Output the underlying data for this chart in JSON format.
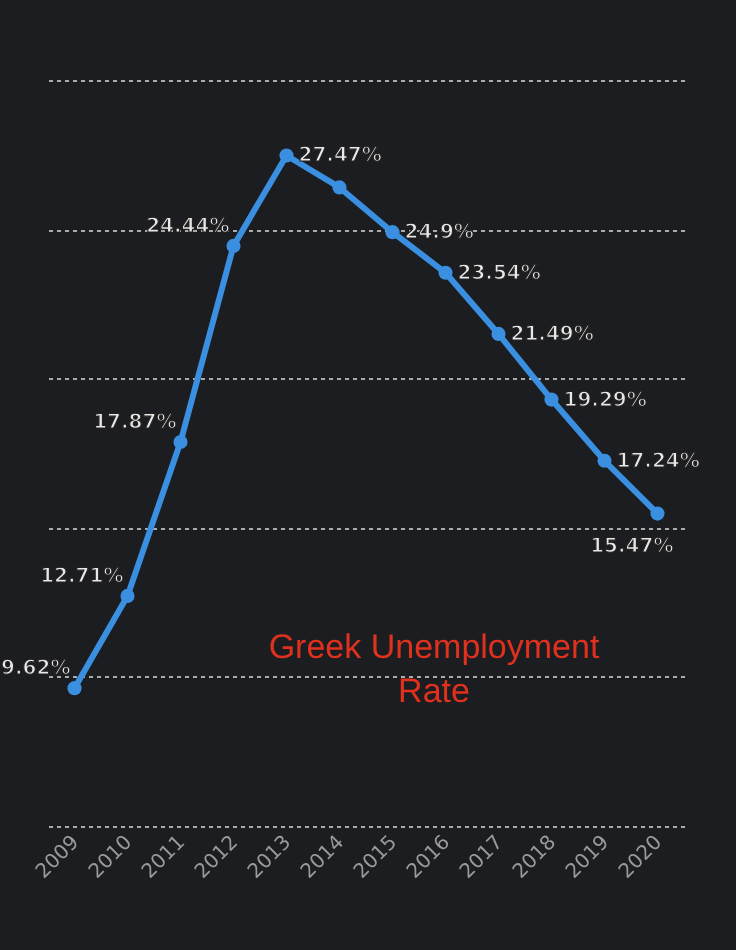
{
  "chart_data": {
    "type": "line",
    "title": "Greek Unemployment Rate",
    "categories": [
      "2009",
      "2010",
      "2011",
      "2012",
      "2013",
      "2014",
      "2015",
      "2016",
      "2017",
      "2018",
      "2019",
      "2020"
    ],
    "series": [
      {
        "color": "#3a8fe0",
        "values": [
          9.62,
          12.71,
          17.87,
          24.44,
          27.47,
          26.4,
          24.9,
          23.54,
          21.49,
          19.29,
          17.24,
          15.47
        ],
        "value_labels": [
          "9.62%",
          "12.71%",
          "17.87%",
          "24.44%",
          "27.47%",
          null,
          "24.9%",
          "23.54%",
          "21.49%",
          "19.29%",
          "17.24%",
          "15.47%"
        ]
      }
    ],
    "ylim": [
      5,
      30
    ],
    "yticks": [
      5,
      10,
      15,
      20,
      25,
      30
    ],
    "grid": "y",
    "tick_labels": "x",
    "marker": "circle",
    "line_style": "solid"
  }
}
